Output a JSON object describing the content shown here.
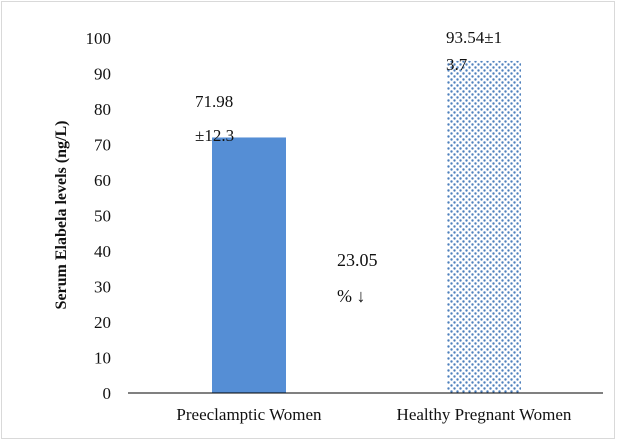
{
  "chart_data": {
    "type": "bar",
    "title": "",
    "xlabel": "",
    "ylabel": "Serum Elabela levels (ng/L)",
    "ylim": [
      0,
      100
    ],
    "yticks": [
      0,
      10,
      20,
      30,
      40,
      50,
      60,
      70,
      80,
      90,
      100
    ],
    "categories": [
      "Preeclamptic Women",
      "Healthy Pregnant Women"
    ],
    "values": [
      71.98,
      93.54
    ],
    "data_labels": [
      [
        "71.98",
        "±12.3"
      ],
      [
        "93.54±1",
        "3.7"
      ]
    ],
    "annotation": [
      "23.05",
      "% ↓"
    ],
    "colors": {
      "bar_solid": "#558ed5",
      "bar_pattern_dot": "#4f81bd",
      "axis": "#000000"
    },
    "grid": false,
    "legend": "none"
  }
}
